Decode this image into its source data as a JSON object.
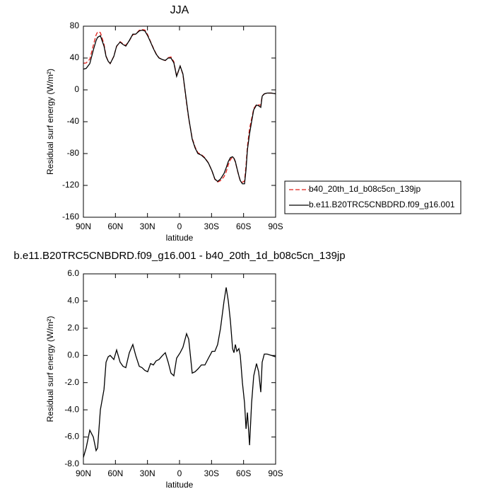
{
  "chart_data": [
    {
      "type": "line",
      "title": "JJA",
      "x_label": "latitude",
      "y_label": "Residual surf energy (W/m²)",
      "x": [
        90,
        87.4,
        84,
        80.7,
        78.1,
        76.7,
        74.1,
        70.7,
        68.8,
        66.8,
        64.9,
        61.5,
        58.9,
        55.6,
        52.9,
        50.3,
        47,
        43.7,
        41,
        37.7,
        35.1,
        32.4,
        29.8,
        27.1,
        24.5,
        21.9,
        19.2,
        15.9,
        13.3,
        10.6,
        8,
        5.3,
        2.7,
        -0.6,
        -3.2,
        -6.6,
        -8.6,
        -11.9,
        -14.6,
        -17.2,
        -20.5,
        -23.8,
        -27.1,
        -30.5,
        -33.1,
        -35.7,
        -38.4,
        -41.7,
        -43.7,
        -45.7,
        -47.7,
        -49.7,
        -51,
        -52.3,
        -53.7,
        -55.6,
        -56.9,
        -58.9,
        -60.9,
        -62.3,
        -63.6,
        -65.6,
        -67.5,
        -69.5,
        -72.1,
        -74.1,
        -76.1,
        -77.4,
        -79.4,
        -82.1,
        -86,
        -90
      ],
      "series": [
        {
          "name": "b40_20th_1d_b08c5cn_139jp",
          "color": "#e0201b",
          "dashed": true,
          "values": [
            33.5,
            33.8,
            38.5,
            56,
            69,
            72.8,
            72,
            57.5,
            42.5,
            36.1,
            33,
            42.3,
            54.6,
            60.5,
            57.8,
            55.9,
            61.8,
            69.2,
            70,
            74.8,
            75.9,
            75.1,
            69.2,
            60.6,
            52.7,
            45.4,
            40.3,
            38,
            36.8,
            40.5,
            41.3,
            35.5,
            17.2,
            29.8,
            19.4,
            -16.6,
            -36.2,
            -60.7,
            -71.8,
            -79,
            -81.3,
            -85.3,
            -91.8,
            -102.3,
            -112.3,
            -115.8,
            -114,
            -109,
            -103,
            -94,
            -87.5,
            -84.5,
            -86.2,
            -90.8,
            -98.3,
            -108.5,
            -114,
            -116,
            -114.5,
            -94.6,
            -70.8,
            -48.4,
            -36.5,
            -23.5,
            -18.4,
            -18.8,
            -19.3,
            -7.5,
            -5.1,
            -4.1,
            -4,
            -4.9
          ]
        },
        {
          "name": "b.e11.B20TRC5CNBDRD.f09_g16.001",
          "color": "#000000",
          "dashed": false,
          "values": [
            26,
            27,
            33,
            50,
            62,
            66,
            68,
            55,
            42,
            36,
            33,
            42,
            55,
            60,
            57,
            55,
            62,
            70,
            70,
            74,
            75,
            74,
            68,
            60,
            52,
            45,
            40,
            38,
            37,
            40,
            40,
            34,
            17,
            30,
            20,
            -15,
            -35,
            -62,
            -73,
            -80,
            -82,
            -86,
            -92,
            -102,
            -112,
            -115,
            -112,
            -105,
            -98,
            -90,
            -85,
            -84,
            -86,
            -90,
            -98,
            -108,
            -114,
            -118,
            -118,
            -100,
            -75,
            -55,
            -40,
            -25,
            -19,
            -20,
            -22,
            -8,
            -5,
            -4,
            -4,
            -5
          ]
        }
      ],
      "xlim": [
        90,
        -90
      ],
      "xticks": [
        {
          "value": 90,
          "label": "90N"
        },
        {
          "value": 60,
          "label": "60N"
        },
        {
          "value": 30,
          "label": "30N"
        },
        0,
        {
          "value": -30,
          "label": "30S"
        },
        {
          "value": -60,
          "label": "60S"
        },
        {
          "value": -90,
          "label": "90S"
        }
      ],
      "ylim": [
        -160,
        80
      ],
      "yticks": [
        -160,
        -120,
        -80,
        -40,
        0,
        40,
        80
      ],
      "legend": "outside-right"
    },
    {
      "type": "line",
      "title": "b.e11.B20TRC5CNBDRD.f09_g16.001 - b40_20th_1d_b08c5cn_139jp",
      "x_label": "latitude",
      "y_label": "Residual surf energy (W/m²)",
      "x": [
        90,
        87.4,
        84,
        80.7,
        78.1,
        76.7,
        74.1,
        70.7,
        68.8,
        66.8,
        64.9,
        61.5,
        58.9,
        55.6,
        52.9,
        50.3,
        47,
        43.7,
        41,
        37.7,
        35.1,
        32.4,
        29.8,
        27.1,
        24.5,
        21.9,
        19.2,
        15.9,
        13.3,
        10.6,
        8,
        5.3,
        2.7,
        -0.6,
        -3.2,
        -6.6,
        -8.6,
        -11.9,
        -14.6,
        -17.2,
        -20.5,
        -23.8,
        -27.1,
        -30.5,
        -33.1,
        -35.7,
        -38.4,
        -41.7,
        -43.7,
        -45.7,
        -47.7,
        -49.7,
        -51,
        -52.3,
        -53.7,
        -55.6,
        -56.9,
        -58.9,
        -60.9,
        -62.3,
        -63.6,
        -65.6,
        -67.5,
        -69.5,
        -72.1,
        -74.1,
        -76.1,
        -77.4,
        -79.4,
        -82.1,
        -86,
        -90
      ],
      "series": [
        {
          "color": "#000000",
          "dashed": false,
          "values": [
            -7.5,
            -6.8,
            -5.5,
            -6.0,
            -7.0,
            -6.8,
            -4.0,
            -2.5,
            -0.5,
            -0.1,
            0.0,
            -0.3,
            0.4,
            -0.5,
            -0.8,
            -0.9,
            0.2,
            0.8,
            0,
            -0.8,
            -0.9,
            -1.1,
            -1.2,
            -0.6,
            -0.7,
            -0.4,
            -0.3,
            0,
            0.2,
            -0.5,
            -1.3,
            -1.5,
            -0.2,
            0.2,
            0.6,
            1.6,
            1.2,
            -1.3,
            -1.2,
            -1.0,
            -0.7,
            -0.7,
            -0.2,
            0.3,
            0.3,
            0.8,
            2.0,
            4.0,
            5.0,
            4.0,
            2.5,
            0.5,
            0.2,
            0.8,
            0.3,
            0.5,
            0,
            -2.0,
            -3.5,
            -5.4,
            -4.2,
            -6.6,
            -3.5,
            -1.5,
            -0.6,
            -1.2,
            -2.7,
            -0.5,
            0.1,
            0.1,
            0,
            -0.1
          ]
        }
      ],
      "xlim": [
        90,
        -90
      ],
      "xticks": [
        {
          "value": 90,
          "label": "90N"
        },
        {
          "value": 60,
          "label": "60N"
        },
        {
          "value": 30,
          "label": "30N"
        },
        0,
        {
          "value": -30,
          "label": "30S"
        },
        {
          "value": -60,
          "label": "60S"
        },
        {
          "value": -90,
          "label": "90S"
        }
      ],
      "ylim": [
        -8,
        6
      ],
      "yticks": [
        {
          "value": -8,
          "label": "-8.0"
        },
        {
          "value": -6,
          "label": "-6.0"
        },
        {
          "value": -4,
          "label": "-4.0"
        },
        {
          "value": -2,
          "label": "-2.0"
        },
        {
          "value": 0,
          "label": "0.0"
        },
        {
          "value": 2,
          "label": "2.0"
        },
        {
          "value": 4,
          "label": "4.0"
        },
        {
          "value": 6,
          "label": "6.0"
        }
      ]
    }
  ]
}
